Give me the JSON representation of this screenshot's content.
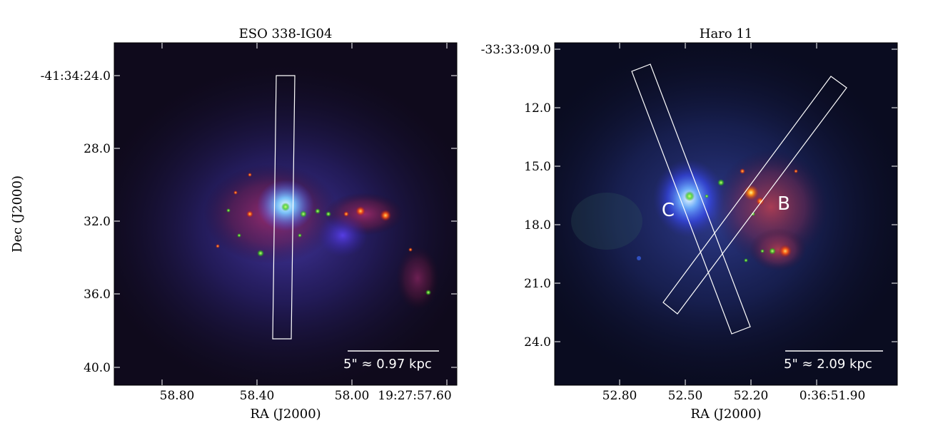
{
  "figure": {
    "ylabel": "Dec (J2000)",
    "panels": [
      {
        "title": "ESO 338-IG04",
        "xlabel": "RA (J2000)",
        "xticks": [
          "58.80",
          "58.40",
          "58.00",
          "19:27:57.60"
        ],
        "yticks": [
          "-41:34:24.0",
          "28.0",
          "32.0",
          "36.0",
          "40.0"
        ],
        "scalebar_label": "5\"  ≈ 0.97 kpc"
      },
      {
        "title": "Haro 11",
        "xlabel": "RA (J2000)",
        "xticks": [
          "52.80",
          "52.50",
          "52.20",
          "0:36:51.90"
        ],
        "yticks": [
          "-33:33:09.0",
          "12.0",
          "15.0",
          "18.0",
          "21.0",
          "24.0"
        ],
        "scalebar_label": "5\"  ≈ 2.09 kpc",
        "knot_labels": [
          "C",
          "B"
        ]
      }
    ]
  }
}
